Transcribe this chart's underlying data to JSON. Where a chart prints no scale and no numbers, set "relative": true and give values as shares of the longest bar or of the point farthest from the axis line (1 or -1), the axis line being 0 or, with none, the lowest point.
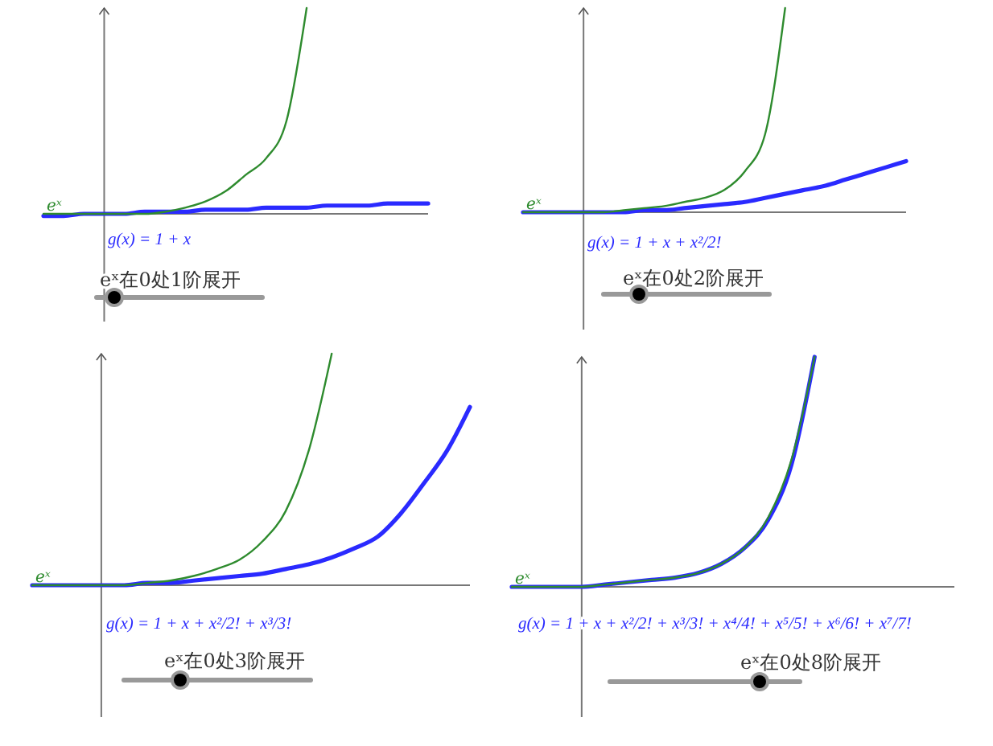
{
  "chart_data": [
    {
      "type": "line",
      "relative": true,
      "title": "eˣ在0处1阶展开",
      "categories": [
        null,
        null,
        null,
        null,
        null,
        null,
        null,
        null,
        null,
        null,
        null,
        null,
        null,
        null,
        null,
        null,
        null,
        null,
        null,
        null
      ],
      "series": [
        {
          "name": "eˣ",
          "color": "#2e8b2e",
          "values": [
            0,
            0,
            0,
            0,
            0,
            0,
            0.01,
            0.03,
            0.06,
            0.11,
            0.19,
            0.27,
            0.45,
            1,
            null,
            null,
            null,
            null,
            null,
            null
          ]
        },
        {
          "name": "g(x) = 1 + x",
          "color": "#2a2aff",
          "values": [
            -0.01,
            -0.01,
            0,
            0,
            0,
            0.01,
            0.01,
            0.01,
            0.02,
            0.02,
            0.02,
            0.03,
            0.03,
            0.03,
            0.04,
            0.04,
            0.04,
            0.05,
            0.05,
            0.05
          ]
        }
      ]
    },
    {
      "type": "line",
      "relative": true,
      "title": "eˣ在0处2阶展开",
      "categories": [
        null,
        null,
        null,
        null,
        null,
        null,
        null,
        null,
        null,
        null,
        null,
        null,
        null,
        null,
        null,
        null,
        null,
        null,
        null,
        null
      ],
      "series": [
        {
          "name": "eˣ",
          "color": "#2e8b2e",
          "values": [
            0,
            0,
            0,
            0,
            0,
            0.01,
            0.02,
            0.03,
            0.05,
            0.07,
            0.11,
            0.2,
            0.38,
            1,
            null,
            null,
            null,
            null,
            null,
            null
          ]
        },
        {
          "name": "g(x) = 1 + x + x²/2!",
          "color": "#2a2aff",
          "values": [
            0,
            0,
            0,
            0,
            0,
            0,
            0.01,
            0.01,
            0.02,
            0.03,
            0.04,
            0.05,
            0.07,
            0.09,
            0.11,
            0.13,
            0.16,
            0.19,
            0.22,
            0.25
          ]
        }
      ]
    },
    {
      "type": "line",
      "relative": true,
      "title": "eˣ在0处3阶展开",
      "categories": [
        null,
        null,
        null,
        null,
        null,
        null,
        null,
        null,
        null,
        null,
        null,
        null,
        null,
        null,
        null,
        null,
        null,
        null,
        null,
        null
      ],
      "series": [
        {
          "name": "eˣ",
          "color": "#2e8b2e",
          "values": [
            0,
            0,
            0,
            0,
            0,
            0.01,
            0.02,
            0.04,
            0.07,
            0.11,
            0.19,
            0.32,
            0.58,
            1,
            null,
            null,
            null,
            null,
            null,
            null
          ]
        },
        {
          "name": "g(x) = 1 + x + x²/2! + x³/3!",
          "color": "#2a2aff",
          "values": [
            0,
            0,
            0,
            0,
            0,
            0.01,
            0.01,
            0.02,
            0.03,
            0.04,
            0.05,
            0.07,
            0.09,
            0.12,
            0.16,
            0.21,
            0.31,
            0.44,
            0.58,
            0.77
          ]
        }
      ]
    },
    {
      "type": "line",
      "relative": true,
      "title": "eˣ在0处8阶展开",
      "categories": [
        null,
        null,
        null,
        null,
        null,
        null,
        null,
        null,
        null,
        null,
        null,
        null,
        null,
        null,
        null,
        null,
        null,
        null,
        null,
        null
      ],
      "series": [
        {
          "name": "eˣ",
          "color": "#2e8b2e",
          "values": [
            0,
            0,
            0,
            0,
            0.01,
            0.02,
            0.03,
            0.04,
            0.06,
            0.1,
            0.17,
            0.3,
            0.55,
            1,
            null,
            null,
            null,
            null,
            null,
            null
          ]
        },
        {
          "name": "g(x) = 1 + x + x²/2! + x³/3! + x⁴/4! + x⁵/5! + x⁶/6! + x⁷/7!",
          "color": "#2a2aff",
          "values": [
            0,
            0,
            0,
            0,
            0.01,
            0.02,
            0.03,
            0.04,
            0.06,
            0.1,
            0.17,
            0.29,
            0.53,
            1,
            null,
            null,
            null,
            null,
            null,
            null
          ]
        }
      ]
    }
  ]
}
